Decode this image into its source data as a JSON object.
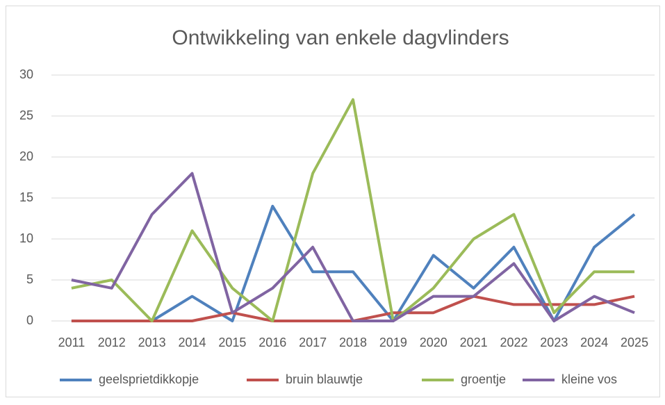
{
  "chart_data": {
    "type": "line",
    "title": "Ontwikkeling van enkele dagvlinders",
    "categories": [
      "2011",
      "2012",
      "2013",
      "2014",
      "2015",
      "2016",
      "2017",
      "2018",
      "2019",
      "2020",
      "2021",
      "2022",
      "2023",
      "2024",
      "2025"
    ],
    "series": [
      {
        "name": "geelsprietdikkopje",
        "color": "#4f81bd",
        "values": [
          0,
          0,
          0,
          3,
          0,
          14,
          6,
          6,
          0,
          8,
          4,
          9,
          0,
          9,
          13
        ]
      },
      {
        "name": "bruin blauwtje",
        "color": "#c0504d",
        "values": [
          0,
          0,
          0,
          0,
          1,
          0,
          0,
          0,
          1,
          1,
          3,
          2,
          2,
          2,
          3
        ]
      },
      {
        "name": "groentje",
        "color": "#9bbb59",
        "values": [
          4,
          5,
          0,
          11,
          4,
          0,
          18,
          27,
          0,
          4,
          10,
          13,
          1,
          6,
          6
        ]
      },
      {
        "name": "kleine vos",
        "color": "#8064a2",
        "values": [
          5,
          4,
          13,
          18,
          1,
          4,
          9,
          0,
          0,
          3,
          3,
          7,
          0,
          3,
          1
        ]
      }
    ],
    "ylim": [
      0,
      30
    ],
    "yticks": [
      0,
      5,
      10,
      15,
      20,
      25,
      30
    ],
    "grid": true,
    "legend": "bottom"
  }
}
